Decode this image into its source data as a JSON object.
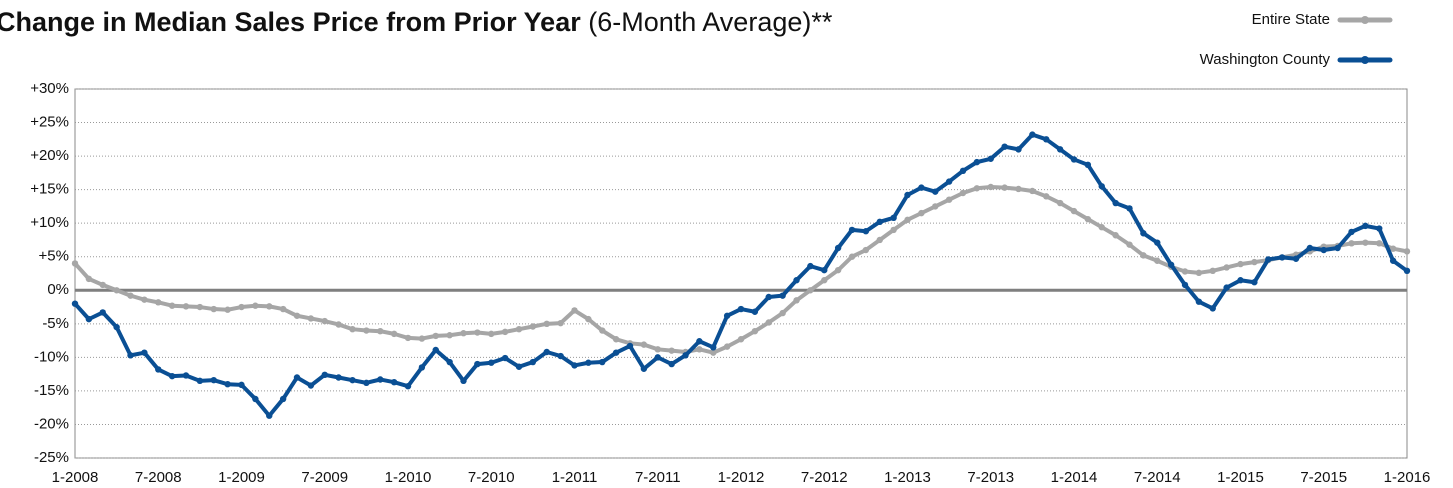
{
  "chart_data": {
    "type": "line",
    "title": "Change in Median Sales Price from Prior Year",
    "subtitle": "(6-Month Average)**",
    "categories": [
      "1-2008",
      null,
      null,
      null,
      null,
      null,
      "7-2008",
      null,
      null,
      null,
      null,
      null,
      "1-2009",
      null,
      null,
      null,
      null,
      null,
      "7-2009",
      null,
      null,
      null,
      null,
      null,
      "1-2010",
      null,
      null,
      null,
      null,
      null,
      "7-2010",
      null,
      null,
      null,
      null,
      null,
      "1-2011",
      null,
      null,
      null,
      null,
      null,
      "7-2011",
      null,
      null,
      null,
      null,
      null,
      "1-2012",
      null,
      null,
      null,
      null,
      null,
      "7-2012",
      null,
      null,
      null,
      null,
      null,
      "1-2013",
      null,
      null,
      null,
      null,
      null,
      "7-2013",
      null,
      null,
      null,
      null,
      null,
      "1-2014",
      null,
      null,
      null,
      null,
      null,
      "7-2014",
      null,
      null,
      null,
      null,
      null,
      "1-2015",
      null,
      null,
      null,
      null,
      null,
      "7-2015",
      null,
      null,
      null,
      null,
      null,
      "1-2016"
    ],
    "series": [
      {
        "name": "Entire State",
        "color": "#a6a6a6",
        "values": [
          4,
          1.7,
          0.8,
          0,
          -0.8,
          -1.4,
          -1.8,
          -2.3,
          -2.4,
          -2.5,
          -2.8,
          -2.9,
          -2.5,
          -2.3,
          -2.4,
          -2.8,
          -3.8,
          -4.2,
          -4.6,
          -5.1,
          -5.8,
          -6,
          -6.1,
          -6.5,
          -7.1,
          -7.2,
          -6.8,
          -6.7,
          -6.4,
          -6.3,
          -6.5,
          -6.2,
          -5.8,
          -5.4,
          -5,
          -4.9,
          -3,
          -4.3,
          -6,
          -7.3,
          -7.9,
          -8.1,
          -8.8,
          -9,
          -9.2,
          -8.8,
          -9.3,
          -8.4,
          -7.3,
          -6.1,
          -4.8,
          -3.4,
          -1.5,
          0,
          1.5,
          3,
          5,
          6,
          7.5,
          9,
          10.5,
          11.5,
          12.5,
          13.5,
          14.5,
          15.2,
          15.4,
          15.3,
          15.1,
          14.8,
          14,
          13,
          11.8,
          10.6,
          9.4,
          8.2,
          6.8,
          5.2,
          4.4,
          3.5,
          2.8,
          2.6,
          2.9,
          3.4,
          3.9,
          4.2,
          4.5,
          4.9,
          5.3,
          5.8,
          6.5,
          6.6,
          7,
          7.1,
          7,
          6.2,
          5.8
        ]
      },
      {
        "name": "Washington County",
        "color": "#0a4f94",
        "values": [
          -2,
          -4.3,
          -3.3,
          -5.5,
          -9.7,
          -9.3,
          -11.8,
          -12.8,
          -12.7,
          -13.5,
          -13.4,
          -14,
          -14.1,
          -16.2,
          -18.7,
          -16.2,
          -13,
          -14.2,
          -12.6,
          -13,
          -13.4,
          -13.8,
          -13.3,
          -13.7,
          -14.3,
          -11.5,
          -8.9,
          -10.7,
          -13.5,
          -11,
          -10.8,
          -10.1,
          -11.4,
          -10.7,
          -9.2,
          -9.8,
          -11.2,
          -10.8,
          -10.7,
          -9.3,
          -8.3,
          -11.7,
          -10,
          -11,
          -9.7,
          -7.6,
          -8.5,
          -3.8,
          -2.8,
          -3.2,
          -1,
          -0.8,
          1.5,
          3.6,
          3,
          6.3,
          9,
          8.8,
          10.2,
          10.8,
          14.2,
          15.3,
          14.7,
          16.2,
          17.8,
          19.1,
          19.6,
          21.4,
          21,
          23.2,
          22.5,
          21,
          19.5,
          18.7,
          15.5,
          13,
          12.2,
          8.5,
          7.1,
          3.8,
          0.8,
          -1.7,
          -2.7,
          0.4,
          1.5,
          1.2,
          4.6,
          4.9,
          4.7,
          6.3,
          6,
          6.3,
          8.7,
          9.6,
          9.2,
          4.4,
          2.9
        ]
      }
    ],
    "ylim": [
      -25,
      30
    ],
    "yticks": [
      {
        "value": -25,
        "label": "-25%"
      },
      {
        "value": -20,
        "label": "-20%"
      },
      {
        "value": -15,
        "label": "-15%"
      },
      {
        "value": -10,
        "label": "-10%"
      },
      {
        "value": -5,
        "label": "-5%"
      },
      {
        "value": 0,
        "label": "0%"
      },
      {
        "value": 5,
        "label": "+5%"
      },
      {
        "value": 10,
        "label": "+10%"
      },
      {
        "value": 15,
        "label": "+15%"
      },
      {
        "value": 20,
        "label": "+20%"
      },
      {
        "value": 25,
        "label": "+25%"
      },
      {
        "value": 30,
        "label": "+30%"
      }
    ],
    "grid": true,
    "legend": "top-right"
  }
}
